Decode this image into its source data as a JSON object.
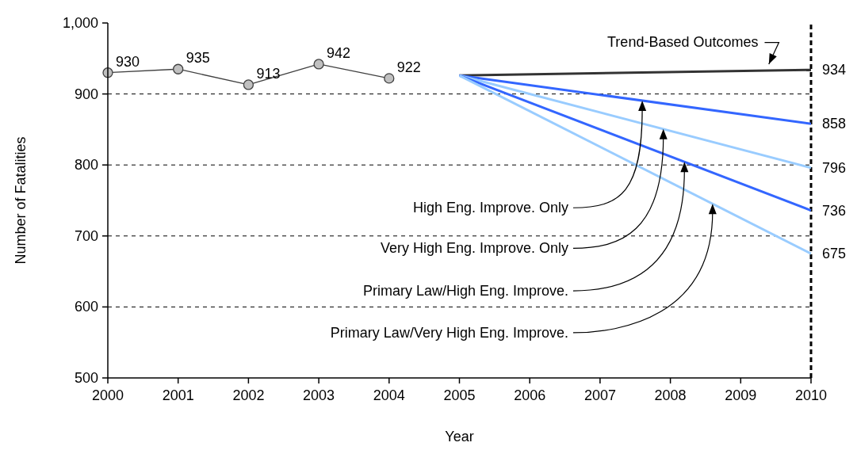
{
  "chart_data": {
    "type": "line",
    "xlabel": "Year",
    "ylabel": "Number of Fatalities",
    "xlim": [
      2000,
      2010
    ],
    "xticks": [
      2000,
      2001,
      2002,
      2003,
      2004,
      2005,
      2006,
      2007,
      2008,
      2009,
      2010
    ],
    "ylim": [
      500,
      1000
    ],
    "yticks": [
      500,
      600,
      700,
      800,
      900,
      {
        "value": 1000,
        "label": "1,000"
      }
    ],
    "grid": "y",
    "series": [
      {
        "color": "#404040",
        "x": [
          2000,
          2001,
          2002,
          2003,
          2004
        ],
        "values": [
          930,
          935,
          913,
          942,
          922
        ],
        "value_labels": [
          "930",
          "935",
          "913",
          "942",
          "922"
        ],
        "marker": "circle"
      },
      {
        "name": "Trend-Based Outcomes",
        "color": "#333333",
        "x": [
          2005,
          2010
        ],
        "values": [
          926,
          934
        ],
        "value_labels": [
          null,
          "934"
        ],
        "marker": "none"
      },
      {
        "name": "High Eng. Improve. Only",
        "color": "#3366ff",
        "x": [
          2005,
          2010
        ],
        "values": [
          926,
          858
        ],
        "value_labels": [
          null,
          "858"
        ],
        "marker": "none"
      },
      {
        "name": "Very High Eng. Improve. Only",
        "color": "#99ccff",
        "x": [
          2005,
          2010
        ],
        "values": [
          926,
          796
        ],
        "value_labels": [
          null,
          "796"
        ],
        "marker": "none"
      },
      {
        "name": "Primary Law/High Eng. Improve.",
        "color": "#3366ff",
        "x": [
          2005,
          2010
        ],
        "values": [
          926,
          736
        ],
        "value_labels": [
          null,
          "736"
        ],
        "marker": "none"
      },
      {
        "name": "Primary Law/Very High Eng. Improve.",
        "color": "#99ccff",
        "x": [
          2005,
          2010
        ],
        "values": [
          926,
          675
        ],
        "value_labels": [
          null,
          "675"
        ],
        "marker": "none"
      }
    ],
    "ref_lines": [
      {
        "axis": "x",
        "value": 2010,
        "color": "#000000",
        "line_style": "dashed"
      }
    ]
  }
}
